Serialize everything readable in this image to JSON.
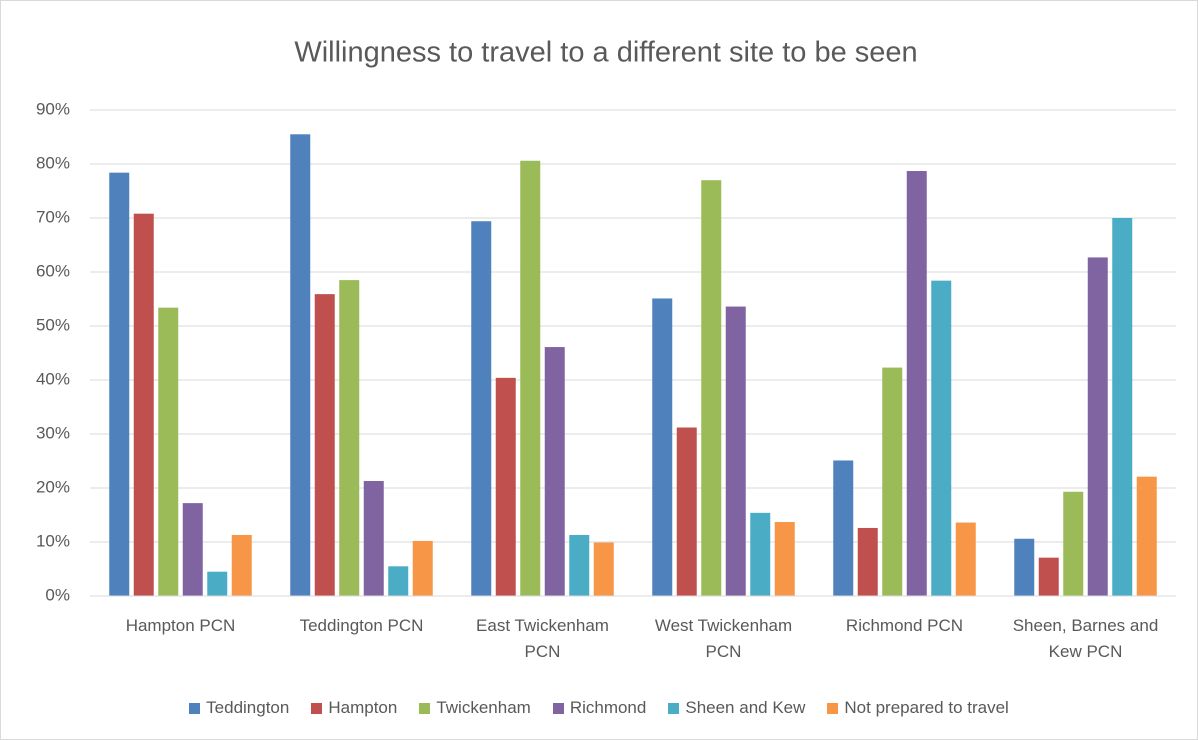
{
  "chart_data": {
    "type": "bar",
    "title": "Willingness to travel to a different site to be seen",
    "categories": [
      "Hampton PCN",
      "Teddington PCN",
      "East Twickenham PCN",
      "West Twickenham PCN",
      "Richmond PCN",
      "Sheen, Barnes and Kew PCN"
    ],
    "series": [
      {
        "name": "Teddington",
        "color": "#4f81bd",
        "values": [
          78.4,
          85.5,
          69.4,
          55.1,
          25.1,
          10.6
        ]
      },
      {
        "name": "Hampton",
        "color": "#c0504d",
        "values": [
          70.8,
          55.9,
          40.4,
          31.2,
          12.6,
          7.1
        ]
      },
      {
        "name": "Twickenham",
        "color": "#9bbb59",
        "values": [
          53.4,
          58.5,
          80.6,
          77.0,
          42.3,
          19.3
        ]
      },
      {
        "name": "Richmond",
        "color": "#8064a2",
        "values": [
          17.2,
          21.3,
          46.1,
          53.6,
          78.7,
          62.7
        ]
      },
      {
        "name": "Sheen and Kew",
        "color": "#4bacc6",
        "values": [
          4.5,
          5.5,
          11.3,
          15.4,
          58.4,
          70.0
        ]
      },
      {
        "name": "Not prepared to travel",
        "color": "#f79646",
        "values": [
          11.3,
          10.2,
          9.9,
          13.7,
          13.6,
          22.1
        ]
      }
    ],
    "ylim": [
      0,
      90
    ],
    "yticks": [
      {
        "value": 0,
        "label": "0%"
      },
      {
        "value": 10,
        "label": "10%"
      },
      {
        "value": 20,
        "label": "20%"
      },
      {
        "value": 30,
        "label": "30%"
      },
      {
        "value": 40,
        "label": "40%"
      },
      {
        "value": 50,
        "label": "50%"
      },
      {
        "value": 60,
        "label": "60%"
      },
      {
        "value": 70,
        "label": "70%"
      },
      {
        "value": 80,
        "label": "80%"
      },
      {
        "value": 90,
        "label": "90%"
      }
    ],
    "grid": true,
    "legend": "bottom"
  }
}
